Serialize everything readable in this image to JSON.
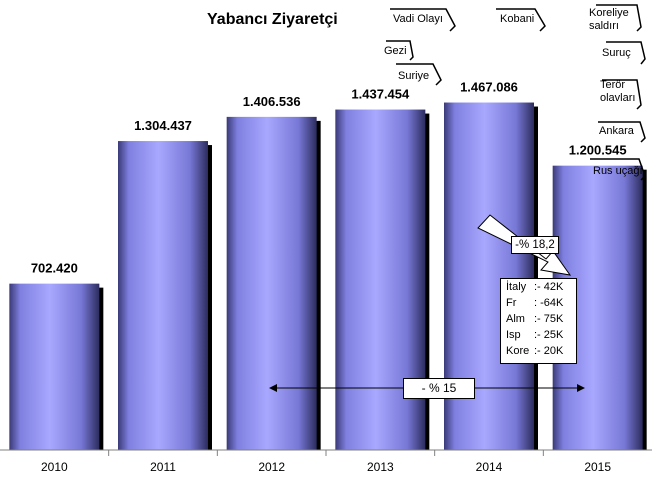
{
  "title": "Yabancı Ziyaretçi",
  "events": [
    {
      "label": "Vadi Olayı"
    },
    {
      "label": "Kobani"
    },
    {
      "label": "Koreliye saldırı"
    },
    {
      "label": "Gezi"
    },
    {
      "label": "Suriye"
    },
    {
      "label": "Suruç"
    },
    {
      "label": "Terör olavları"
    },
    {
      "label": "Ankara"
    },
    {
      "label": "Rus uçağı"
    }
  ],
  "callouts": {
    "decline_2014_2015": "-% 18,2",
    "decline_range": "- % 15"
  },
  "breakdown": {
    "rows": [
      {
        "country": "İtaly",
        "value": ":- 42K"
      },
      {
        "country": "Fr",
        "value": ": -64K"
      },
      {
        "country": "Alm",
        "value": ":- 75K"
      },
      {
        "country": "Isp",
        "value": ":- 25K"
      },
      {
        "country": "Kore",
        "value": ":- 20K"
      }
    ]
  },
  "colors": {
    "bar_fill": "#9999ff",
    "bar_dark": "#333366",
    "axis": "#808080",
    "text": "#000000"
  },
  "chart_data": {
    "type": "bar",
    "title": "Yabancı Ziyaretçi",
    "categories": [
      "2010",
      "2011",
      "2012",
      "2013",
      "2014",
      "2015"
    ],
    "values": [
      702420,
      1304437,
      1406536,
      1437454,
      1467086,
      1200545
    ],
    "data_labels": [
      "702.420",
      "1.304.437",
      "1.406.536",
      "1.437.454",
      "1.467.086",
      "1.200.545"
    ],
    "ylim": [
      0,
      1900000
    ],
    "xlabel": "",
    "ylabel": "",
    "grid": false,
    "legend": "none"
  }
}
